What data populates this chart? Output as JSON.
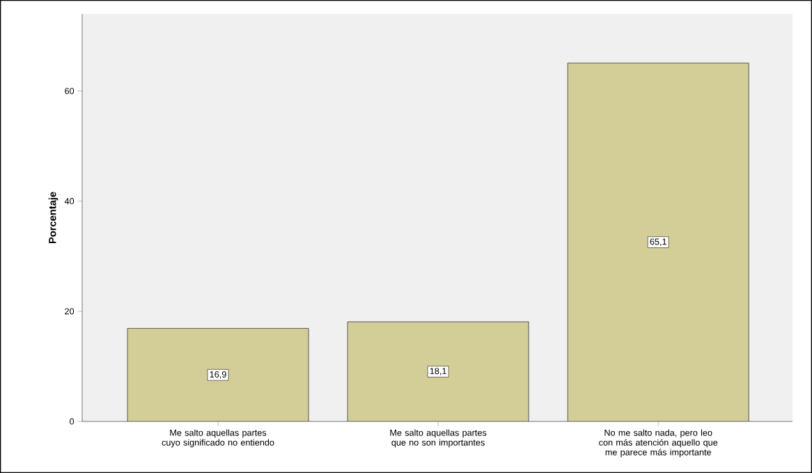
{
  "chart_data": {
    "type": "bar",
    "ylabel": "Porcentaje",
    "categories": [
      "Me salto aquellas partes cuyo significado no entiendo",
      "Me salto aquellas partes que no son importantes",
      "No me salto nada, pero leo con más atención aquello que me parece más importante"
    ],
    "values": [
      16.9,
      18.1,
      65.1
    ],
    "value_labels": [
      "16,9",
      "18,1",
      "65,1"
    ],
    "color": "#d3ce97",
    "ylim": [
      0,
      74
    ],
    "yticks": [
      0,
      20,
      40,
      60
    ]
  }
}
